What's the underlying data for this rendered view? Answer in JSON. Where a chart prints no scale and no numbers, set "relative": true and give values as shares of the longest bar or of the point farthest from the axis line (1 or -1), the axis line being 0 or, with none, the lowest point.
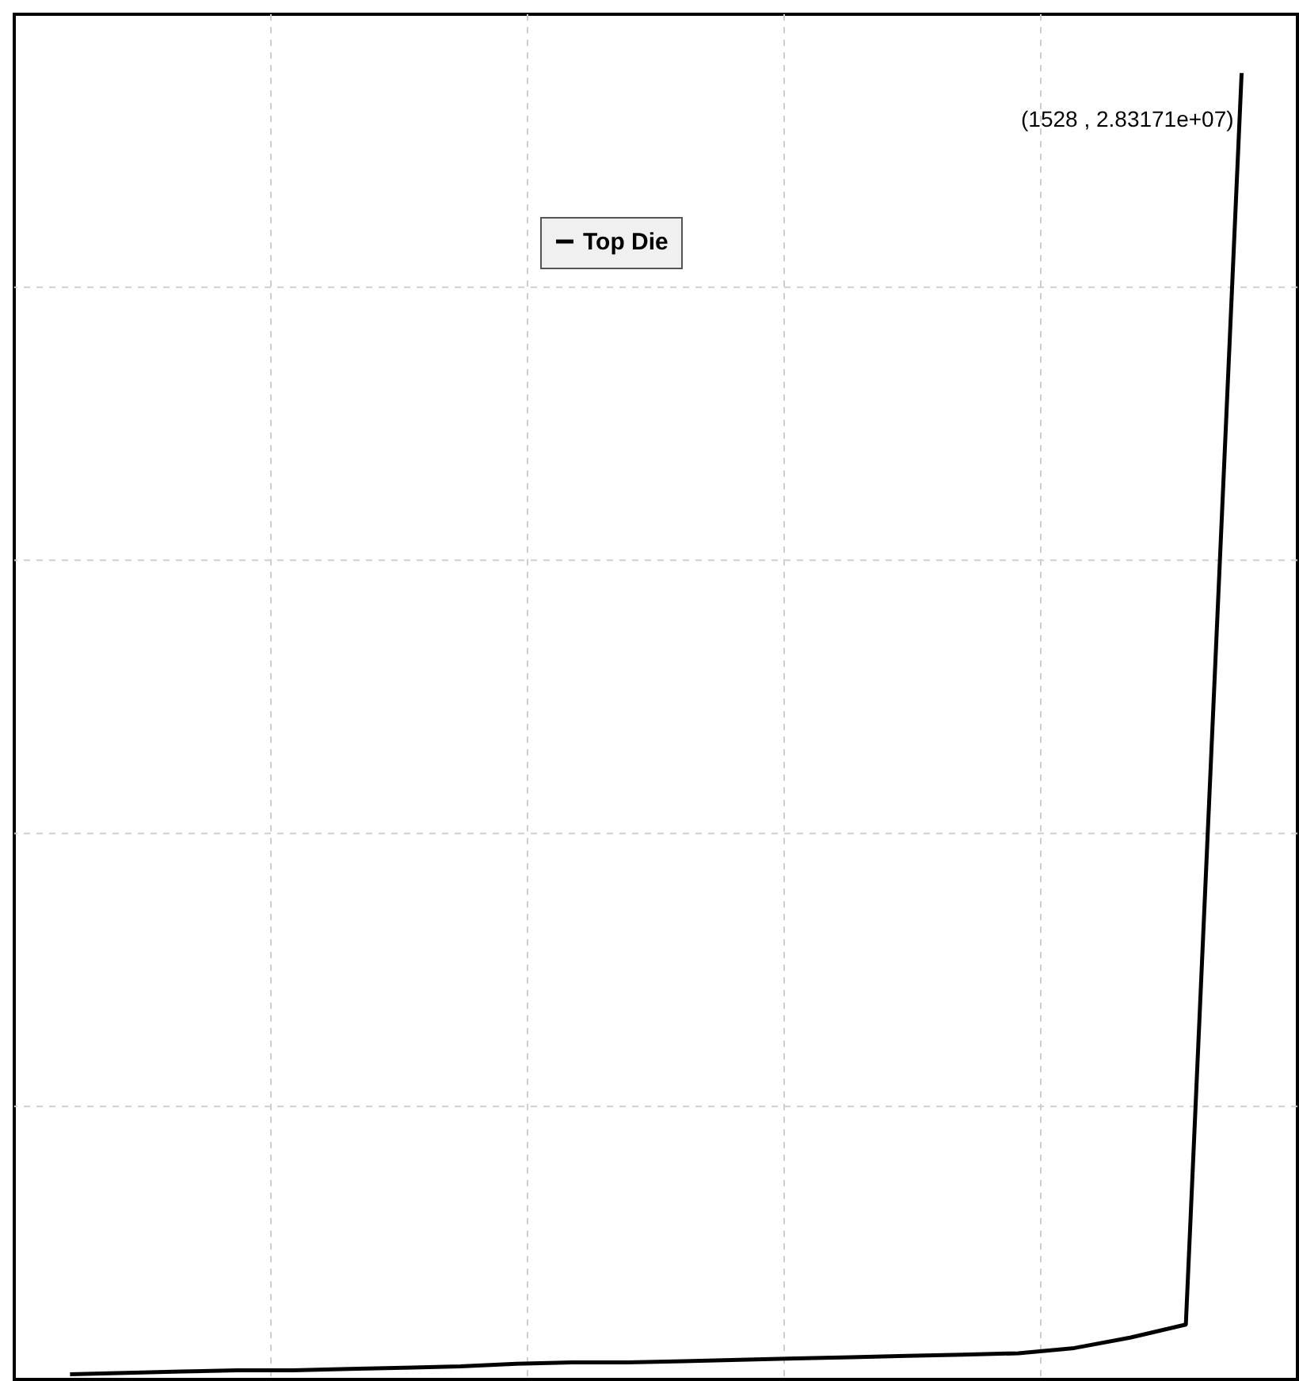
{
  "chart_data": {
    "type": "line",
    "relative": true,
    "categories": [
      null,
      null,
      null,
      null,
      null,
      null,
      null,
      null,
      null,
      null,
      null,
      null,
      null,
      null,
      null,
      null,
      null,
      null,
      null,
      null,
      null,
      null,
      null,
      null
    ],
    "series": [
      {
        "name": "Top Die",
        "color": "#000000",
        "values": [
          null,
          0.004,
          0.005,
          0.006,
          0.007,
          0.007,
          0.008,
          0.009,
          0.01,
          0.012,
          0.013,
          0.013,
          0.014,
          0.015,
          0.016,
          0.017,
          0.018,
          0.019,
          0.02,
          0.024,
          0.032,
          0.042,
          1,
          null
        ]
      }
    ],
    "annotations": [
      "(1528 , 2.83171e+07)"
    ],
    "legend": "top",
    "grid": true,
    "marker": "none",
    "line_style": "solid"
  }
}
